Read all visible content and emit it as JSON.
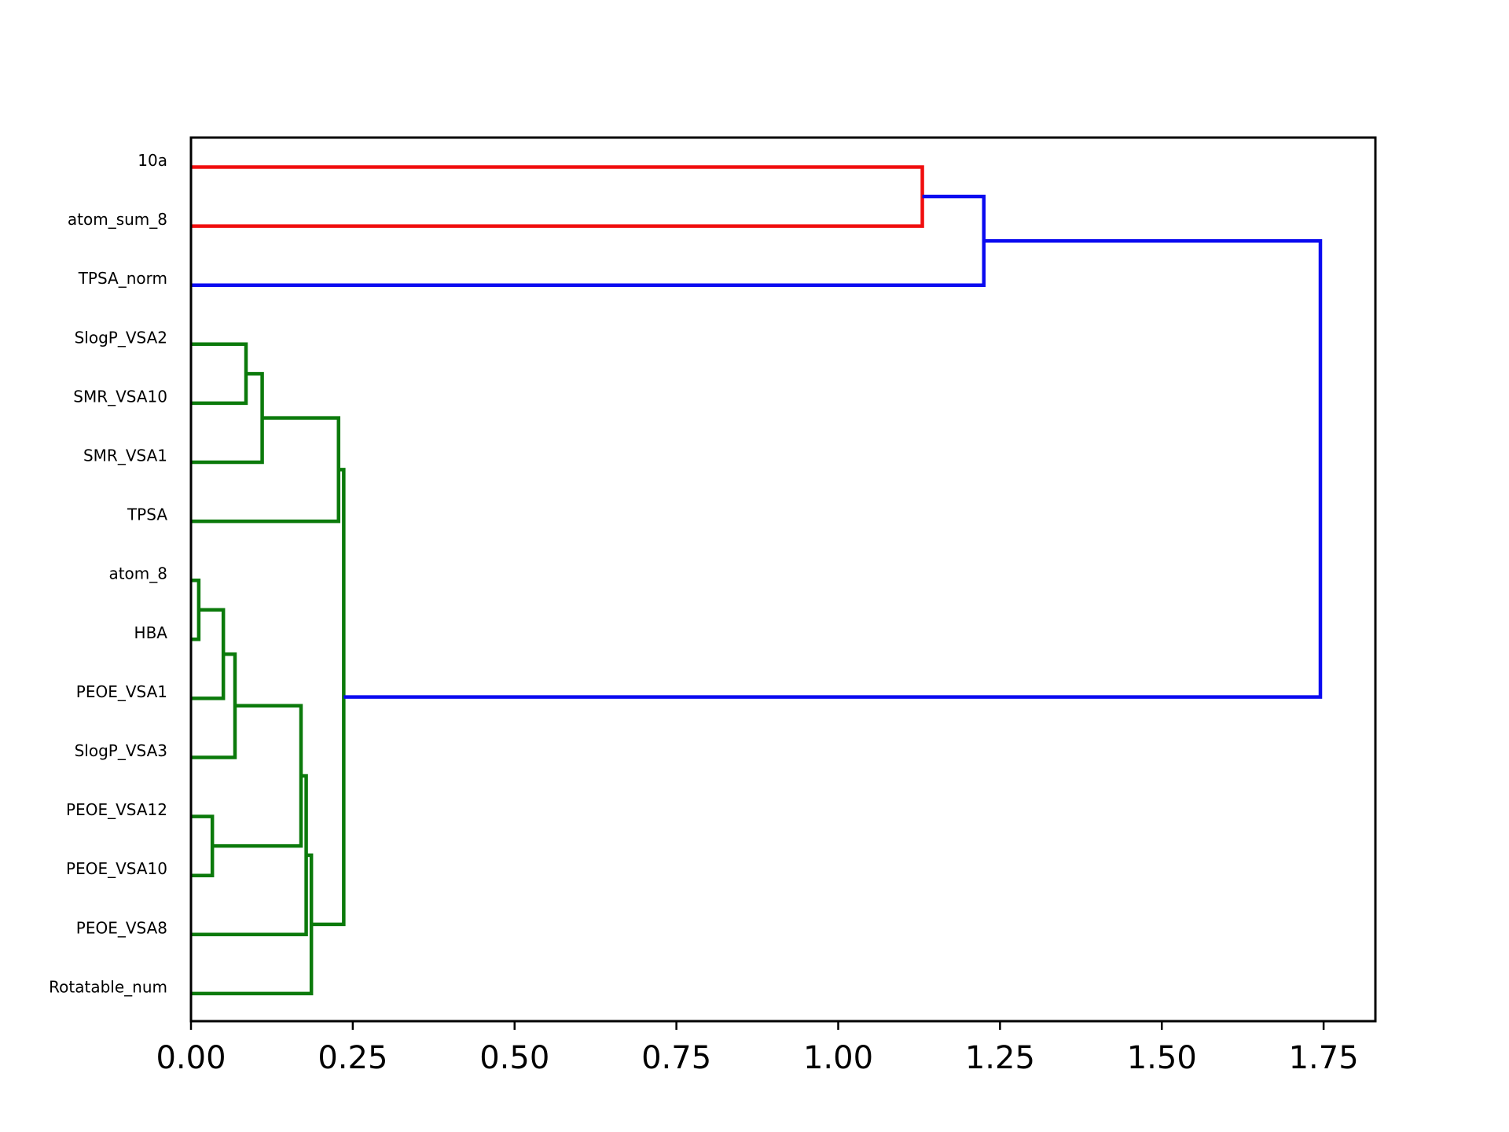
{
  "chart_data": {
    "type": "dendrogram",
    "orientation": "horizontal",
    "title": "",
    "xlabel": "",
    "ylabel": "",
    "xlim": [
      0,
      1.83
    ],
    "x_ticks": [
      0.0,
      0.25,
      0.5,
      0.75,
      1.0,
      1.25,
      1.5,
      1.75
    ],
    "x_tick_labels": [
      "0.00",
      "0.25",
      "0.50",
      "0.75",
      "1.00",
      "1.25",
      "1.50",
      "1.75"
    ],
    "grid": false,
    "colors": {
      "red": "#f00e0e",
      "green": "#0b7a0b",
      "blue": "#0b0bf0",
      "axis": "#000000"
    },
    "leaves": [
      "10a",
      "atom_sum_8",
      "TPSA_norm",
      "SlogP_VSA2",
      "SMR_VSA10",
      "SMR_VSA1",
      "TPSA",
      "atom_8",
      "HBA",
      "PEOE_VSA1",
      "SlogP_VSA3",
      "PEOE_VSA12",
      "PEOE_VSA10",
      "PEOE_VSA8",
      "Rotatable_num"
    ],
    "links": [
      {
        "id": "n1",
        "children": [
          "10a",
          "atom_sum_8"
        ],
        "height": 1.13,
        "color": "red"
      },
      {
        "id": "n2",
        "children": [
          "n1",
          "TPSA_norm"
        ],
        "height": 1.225,
        "color": "blue"
      },
      {
        "id": "n3",
        "children": [
          "SlogP_VSA2",
          "SMR_VSA10"
        ],
        "height": 0.085,
        "color": "green"
      },
      {
        "id": "n4",
        "children": [
          "n3",
          "SMR_VSA1"
        ],
        "height": 0.11,
        "color": "green"
      },
      {
        "id": "n5",
        "children": [
          "n4",
          "TPSA"
        ],
        "height": 0.228,
        "color": "green"
      },
      {
        "id": "n6",
        "children": [
          "atom_8",
          "HBA"
        ],
        "height": 0.012,
        "color": "green"
      },
      {
        "id": "n7",
        "children": [
          "n6",
          "PEOE_VSA1"
        ],
        "height": 0.05,
        "color": "green"
      },
      {
        "id": "n8",
        "children": [
          "n7",
          "SlogP_VSA3"
        ],
        "height": 0.068,
        "color": "green"
      },
      {
        "id": "n9",
        "children": [
          "PEOE_VSA12",
          "PEOE_VSA10"
        ],
        "height": 0.033,
        "color": "green"
      },
      {
        "id": "n10",
        "children": [
          "n8",
          "n9"
        ],
        "height": 0.17,
        "color": "green"
      },
      {
        "id": "n11",
        "children": [
          "n10",
          "PEOE_VSA8"
        ],
        "height": 0.178,
        "color": "green"
      },
      {
        "id": "n12",
        "children": [
          "n11",
          "Rotatable_num"
        ],
        "height": 0.186,
        "color": "green"
      },
      {
        "id": "n13",
        "children": [
          "n5",
          "n12"
        ],
        "height": 0.236,
        "color": "green"
      },
      {
        "id": "n14",
        "children": [
          "n2",
          "n13"
        ],
        "height": 1.745,
        "color": "blue"
      }
    ]
  }
}
